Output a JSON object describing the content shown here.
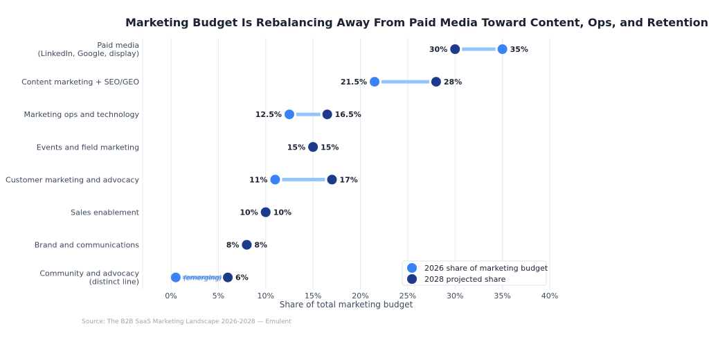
{
  "chart_data": {
    "type": "dumbbell",
    "title": "Marketing Budget Is Rebalancing Away From Paid Media Toward Content, Ops, and Retention",
    "xlabel": "Share of total marketing budget",
    "xlim": [
      0,
      40
    ],
    "x_ticks": [
      "0%",
      "5%",
      "10%",
      "15%",
      "20%",
      "25%",
      "30%",
      "35%",
      "40%"
    ],
    "x_tick_values": [
      0,
      5,
      10,
      15,
      20,
      25,
      30,
      35,
      40
    ],
    "grid": "vertical",
    "legend_position": "bottom-right",
    "categories": [
      [
        "Paid media",
        "(LinkedIn, Google, display)"
      ],
      [
        "Content marketing + SEO/GEO"
      ],
      [
        "Marketing ops and technology"
      ],
      [
        "Events and field marketing"
      ],
      [
        "Customer marketing and advocacy"
      ],
      [
        "Sales enablement"
      ],
      [
        "Brand and communications"
      ],
      [
        "Community and advocacy",
        "(distinct line)"
      ]
    ],
    "series": [
      {
        "name": "2026 share of marketing budget",
        "color": "#3b82f6",
        "values": [
          35,
          21.5,
          12.5,
          15,
          11,
          10,
          8,
          0.5
        ],
        "labels": [
          "35%",
          "21.5%",
          "12.5%",
          "15%",
          "11%",
          "10%",
          "8%",
          "(emerging)"
        ]
      },
      {
        "name": "2028 projected share",
        "color": "#1e3a8a",
        "values": [
          30,
          28,
          16.5,
          15,
          17,
          10,
          8,
          6
        ],
        "labels": [
          "30%",
          "28%",
          "16.5%",
          "15%",
          "17%",
          "10%",
          "8%",
          "6%"
        ]
      }
    ],
    "connector_color": "#93c5fd",
    "source": "Source: The B2B SaaS Marketing Landscape 2026-2028 — Emulent"
  }
}
